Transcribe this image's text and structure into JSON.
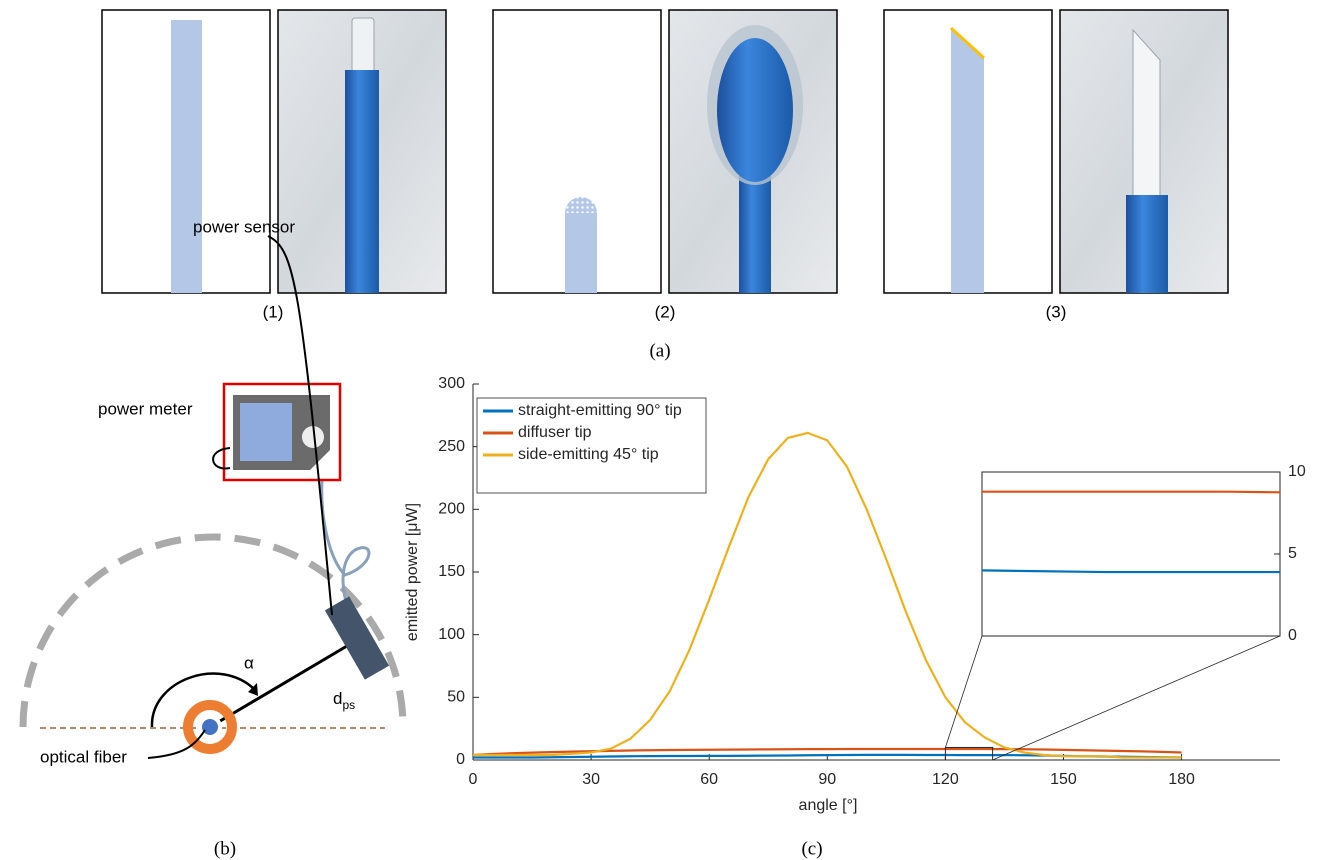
{
  "panels": {
    "labels": [
      "(1)",
      "(2)",
      "(3)"
    ],
    "caption": "(a)"
  },
  "diagram": {
    "power_meter": "power meter",
    "power_sensor": "power sensor",
    "angle_label": "α",
    "distance_label": "d",
    "distance_subscript": "ps",
    "fiber_label": "optical fiber",
    "caption": "(b)"
  },
  "chart_data": {
    "type": "line",
    "caption": "(c)",
    "xlabel": "angle [°]",
    "ylabel": "emitted power [μW]",
    "x": [
      0,
      5,
      10,
      15,
      20,
      25,
      30,
      35,
      40,
      45,
      50,
      55,
      60,
      65,
      70,
      75,
      80,
      85,
      90,
      95,
      100,
      105,
      110,
      115,
      120,
      125,
      130,
      135,
      140,
      145,
      150,
      155,
      160,
      165,
      170,
      175,
      180
    ],
    "series": [
      {
        "name": "straight-emitting 90° tip",
        "color": "#0072bd",
        "values": [
          2,
          2,
          2,
          2,
          2.2,
          2.4,
          2.6,
          2.8,
          3,
          3.1,
          3.2,
          3.2,
          3.3,
          3.3,
          3.4,
          3.5,
          3.6,
          3.8,
          3.9,
          4,
          4.1,
          4.1,
          4.1,
          4,
          4,
          3.9,
          3.9,
          3.9,
          3.8,
          3.6,
          3.3,
          3,
          2.8,
          2.6,
          2.4,
          2.2,
          2
        ]
      },
      {
        "name": "diffuser tip",
        "color": "#d95319",
        "values": [
          4,
          4.8,
          5.4,
          5.9,
          6.3,
          6.7,
          7,
          7.3,
          7.6,
          7.8,
          8,
          8.1,
          8.2,
          8.3,
          8.4,
          8.5,
          8.6,
          8.7,
          8.7,
          8.8,
          8.8,
          8.8,
          8.8,
          8.8,
          8.8,
          8.8,
          8.8,
          8.7,
          8.6,
          8.4,
          8.1,
          7.8,
          7.5,
          7.2,
          6.9,
          6.5,
          6
        ]
      },
      {
        "name": "side-emitting 45° tip",
        "color": "#edb120",
        "values": [
          4,
          4,
          4,
          4,
          4,
          5,
          6,
          9,
          17,
          32,
          55,
          88,
          128,
          170,
          210,
          240,
          257,
          261,
          255,
          234,
          200,
          160,
          118,
          80,
          50,
          30,
          18,
          10,
          6,
          4,
          3,
          3,
          3,
          2,
          2,
          2,
          2
        ]
      }
    ],
    "xlim": [
      0,
      205
    ],
    "ylim": [
      0,
      300
    ],
    "xticks": [
      0,
      30,
      60,
      90,
      120,
      150,
      180
    ],
    "yticks": [
      0,
      50,
      100,
      150,
      200,
      250,
      300
    ],
    "legend": "upper left",
    "inset": {
      "xlim": [
        120,
        132
      ],
      "ylim": [
        0,
        10
      ],
      "yticks": [
        0,
        5,
        10
      ]
    }
  }
}
